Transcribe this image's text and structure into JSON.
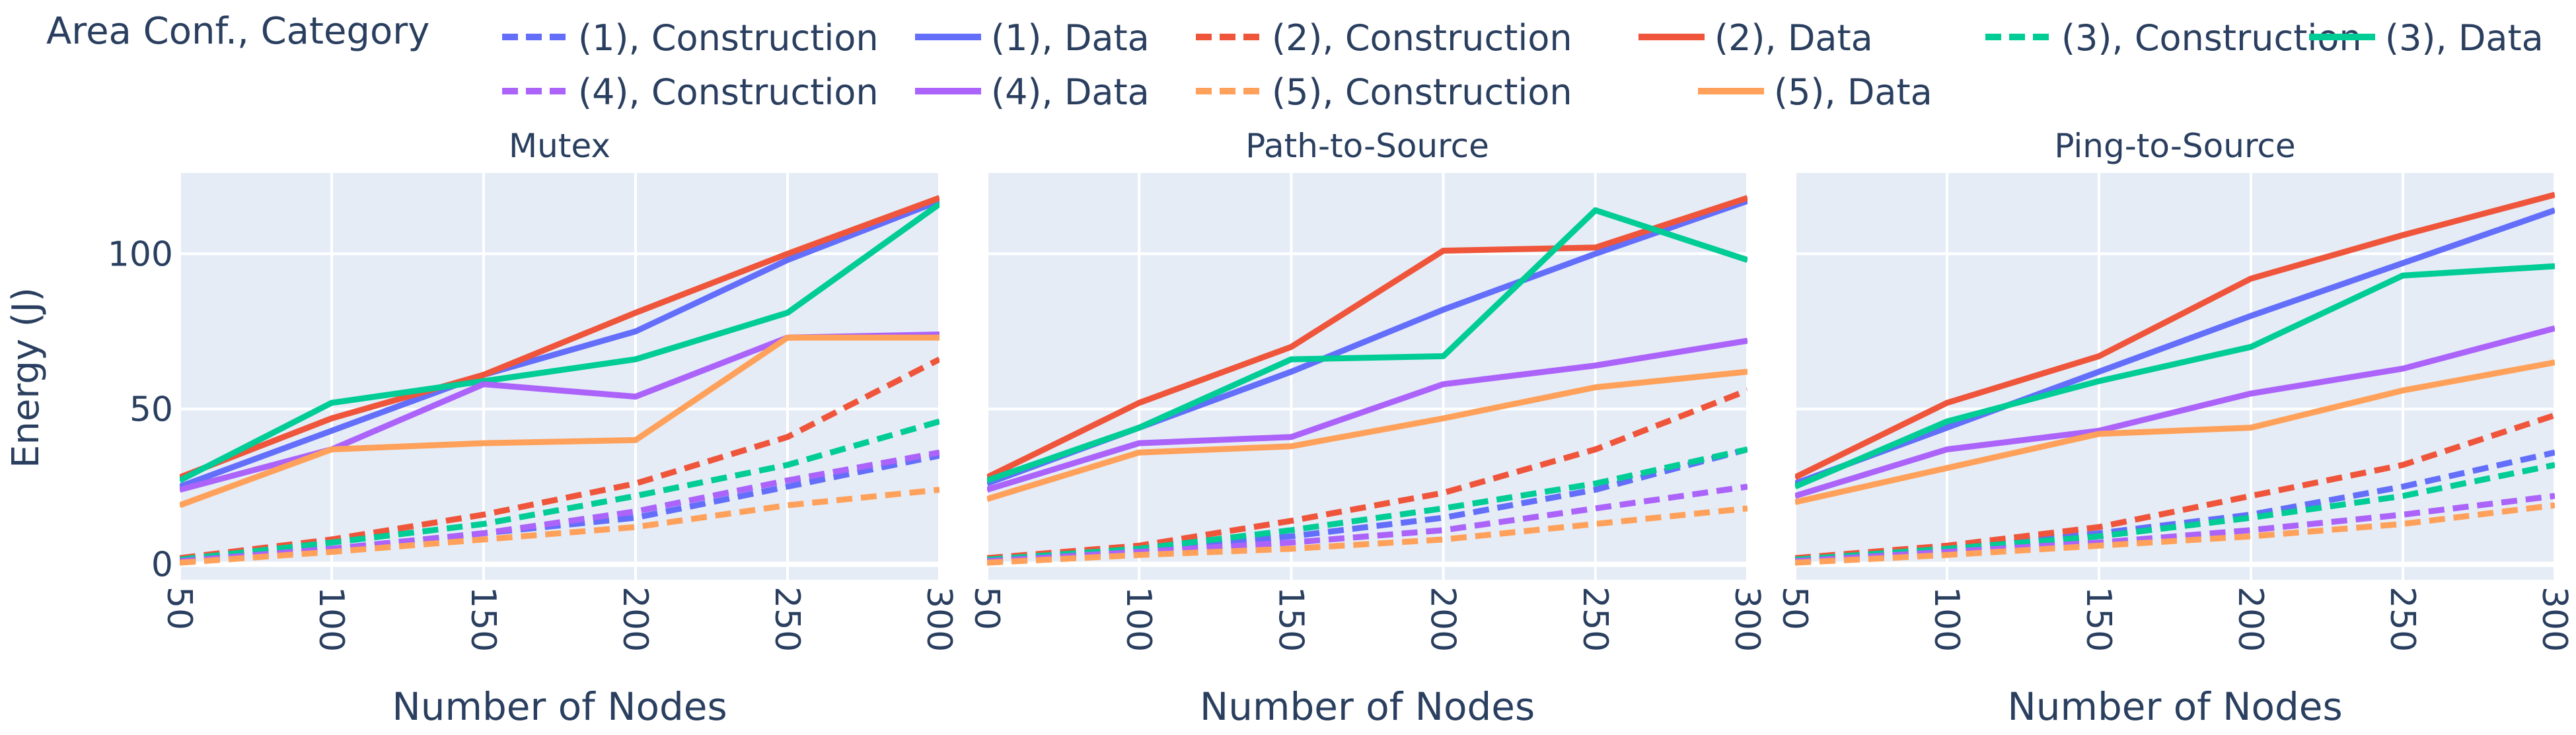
{
  "chart_data": {
    "type": "line",
    "legend_title": "Area Conf., Category",
    "legend_position": "top",
    "ylabel": "Energy (J)",
    "xlabel": "Number of Nodes",
    "xlim": [
      50,
      300
    ],
    "ylim": [
      -5,
      126
    ],
    "x": [
      50,
      100,
      150,
      200,
      250,
      300
    ],
    "x_ticks": [
      "50",
      "100",
      "150",
      "200",
      "250",
      "300"
    ],
    "y_ticks": [
      {
        "value": 0,
        "label": "0"
      },
      {
        "value": 50,
        "label": "50"
      },
      {
        "value": 100,
        "label": "100"
      }
    ],
    "series_styles": [
      {
        "key": "c1",
        "name": "(1), Construction",
        "color": "#636efa",
        "dash": "dash"
      },
      {
        "key": "d1",
        "name": "(1), Data",
        "color": "#636efa",
        "dash": "solid"
      },
      {
        "key": "c2",
        "name": "(2), Construction",
        "color": "#ef553b",
        "dash": "dash"
      },
      {
        "key": "d2",
        "name": "(2), Data",
        "color": "#ef553b",
        "dash": "solid"
      },
      {
        "key": "c3",
        "name": "(3), Construction",
        "color": "#00cc96",
        "dash": "dash"
      },
      {
        "key": "d3",
        "name": "(3), Data",
        "color": "#00cc96",
        "dash": "solid"
      },
      {
        "key": "c4",
        "name": "(4), Construction",
        "color": "#ab63fa",
        "dash": "dash"
      },
      {
        "key": "d4",
        "name": "(4), Data",
        "color": "#ab63fa",
        "dash": "solid"
      },
      {
        "key": "c5",
        "name": "(5), Construction",
        "color": "#ffa15a",
        "dash": "dash"
      },
      {
        "key": "d5",
        "name": "(5), Data",
        "color": "#ffa15a",
        "dash": "solid"
      }
    ],
    "panels": [
      {
        "title": "Mutex",
        "series": {
          "c1": [
            1,
            5,
            10,
            15,
            25,
            35
          ],
          "d1": [
            25,
            43,
            61,
            75,
            98,
            117
          ],
          "c2": [
            2,
            8,
            16,
            26,
            41,
            66
          ],
          "d2": [
            28,
            47,
            61,
            81,
            100,
            118
          ],
          "c3": [
            1.5,
            7,
            13,
            22,
            32,
            46
          ],
          "d3": [
            27,
            52,
            59,
            66,
            81,
            116
          ],
          "c4": [
            1,
            5,
            10,
            17,
            27,
            36
          ],
          "d4": [
            24,
            37,
            58,
            54,
            73,
            74
          ],
          "c5": [
            0.5,
            4,
            8,
            12,
            19,
            24
          ],
          "d5": [
            19,
            37,
            39,
            40,
            73,
            73
          ]
        }
      },
      {
        "title": "Path-to-Source",
        "series": {
          "c1": [
            1,
            5,
            9,
            15,
            24,
            37
          ],
          "d1": [
            26,
            44,
            62,
            82,
            100,
            117
          ],
          "c2": [
            2,
            6,
            14,
            23,
            37,
            56
          ],
          "d2": [
            28,
            52,
            70,
            101,
            102,
            118
          ],
          "c3": [
            1.5,
            5,
            11,
            18,
            26,
            37
          ],
          "d3": [
            27,
            44,
            66,
            67,
            114,
            98
          ],
          "c4": [
            1,
            4,
            7,
            11,
            18,
            25
          ],
          "d4": [
            24,
            39,
            41,
            58,
            64,
            72
          ],
          "c5": [
            0.5,
            3,
            5,
            8,
            13,
            18
          ],
          "d5": [
            21,
            36,
            38,
            47,
            57,
            62
          ]
        }
      },
      {
        "title": "Ping-to-Source",
        "series": {
          "c1": [
            1,
            5,
            10,
            16,
            25,
            36
          ],
          "d1": [
            26,
            44,
            62,
            80,
            97,
            114
          ],
          "c2": [
            2,
            6,
            12,
            22,
            32,
            48
          ],
          "d2": [
            28,
            52,
            67,
            92,
            106,
            119
          ],
          "c3": [
            1.5,
            5,
            9,
            15,
            22,
            32
          ],
          "d3": [
            25,
            46,
            59,
            70,
            93,
            96
          ],
          "c4": [
            1,
            4,
            7,
            11,
            16,
            22
          ],
          "d4": [
            22,
            37,
            43,
            55,
            63,
            76
          ],
          "c5": [
            0.5,
            3,
            6,
            9,
            13,
            19
          ],
          "d5": [
            20,
            31,
            42,
            44,
            56,
            65
          ]
        }
      }
    ]
  }
}
